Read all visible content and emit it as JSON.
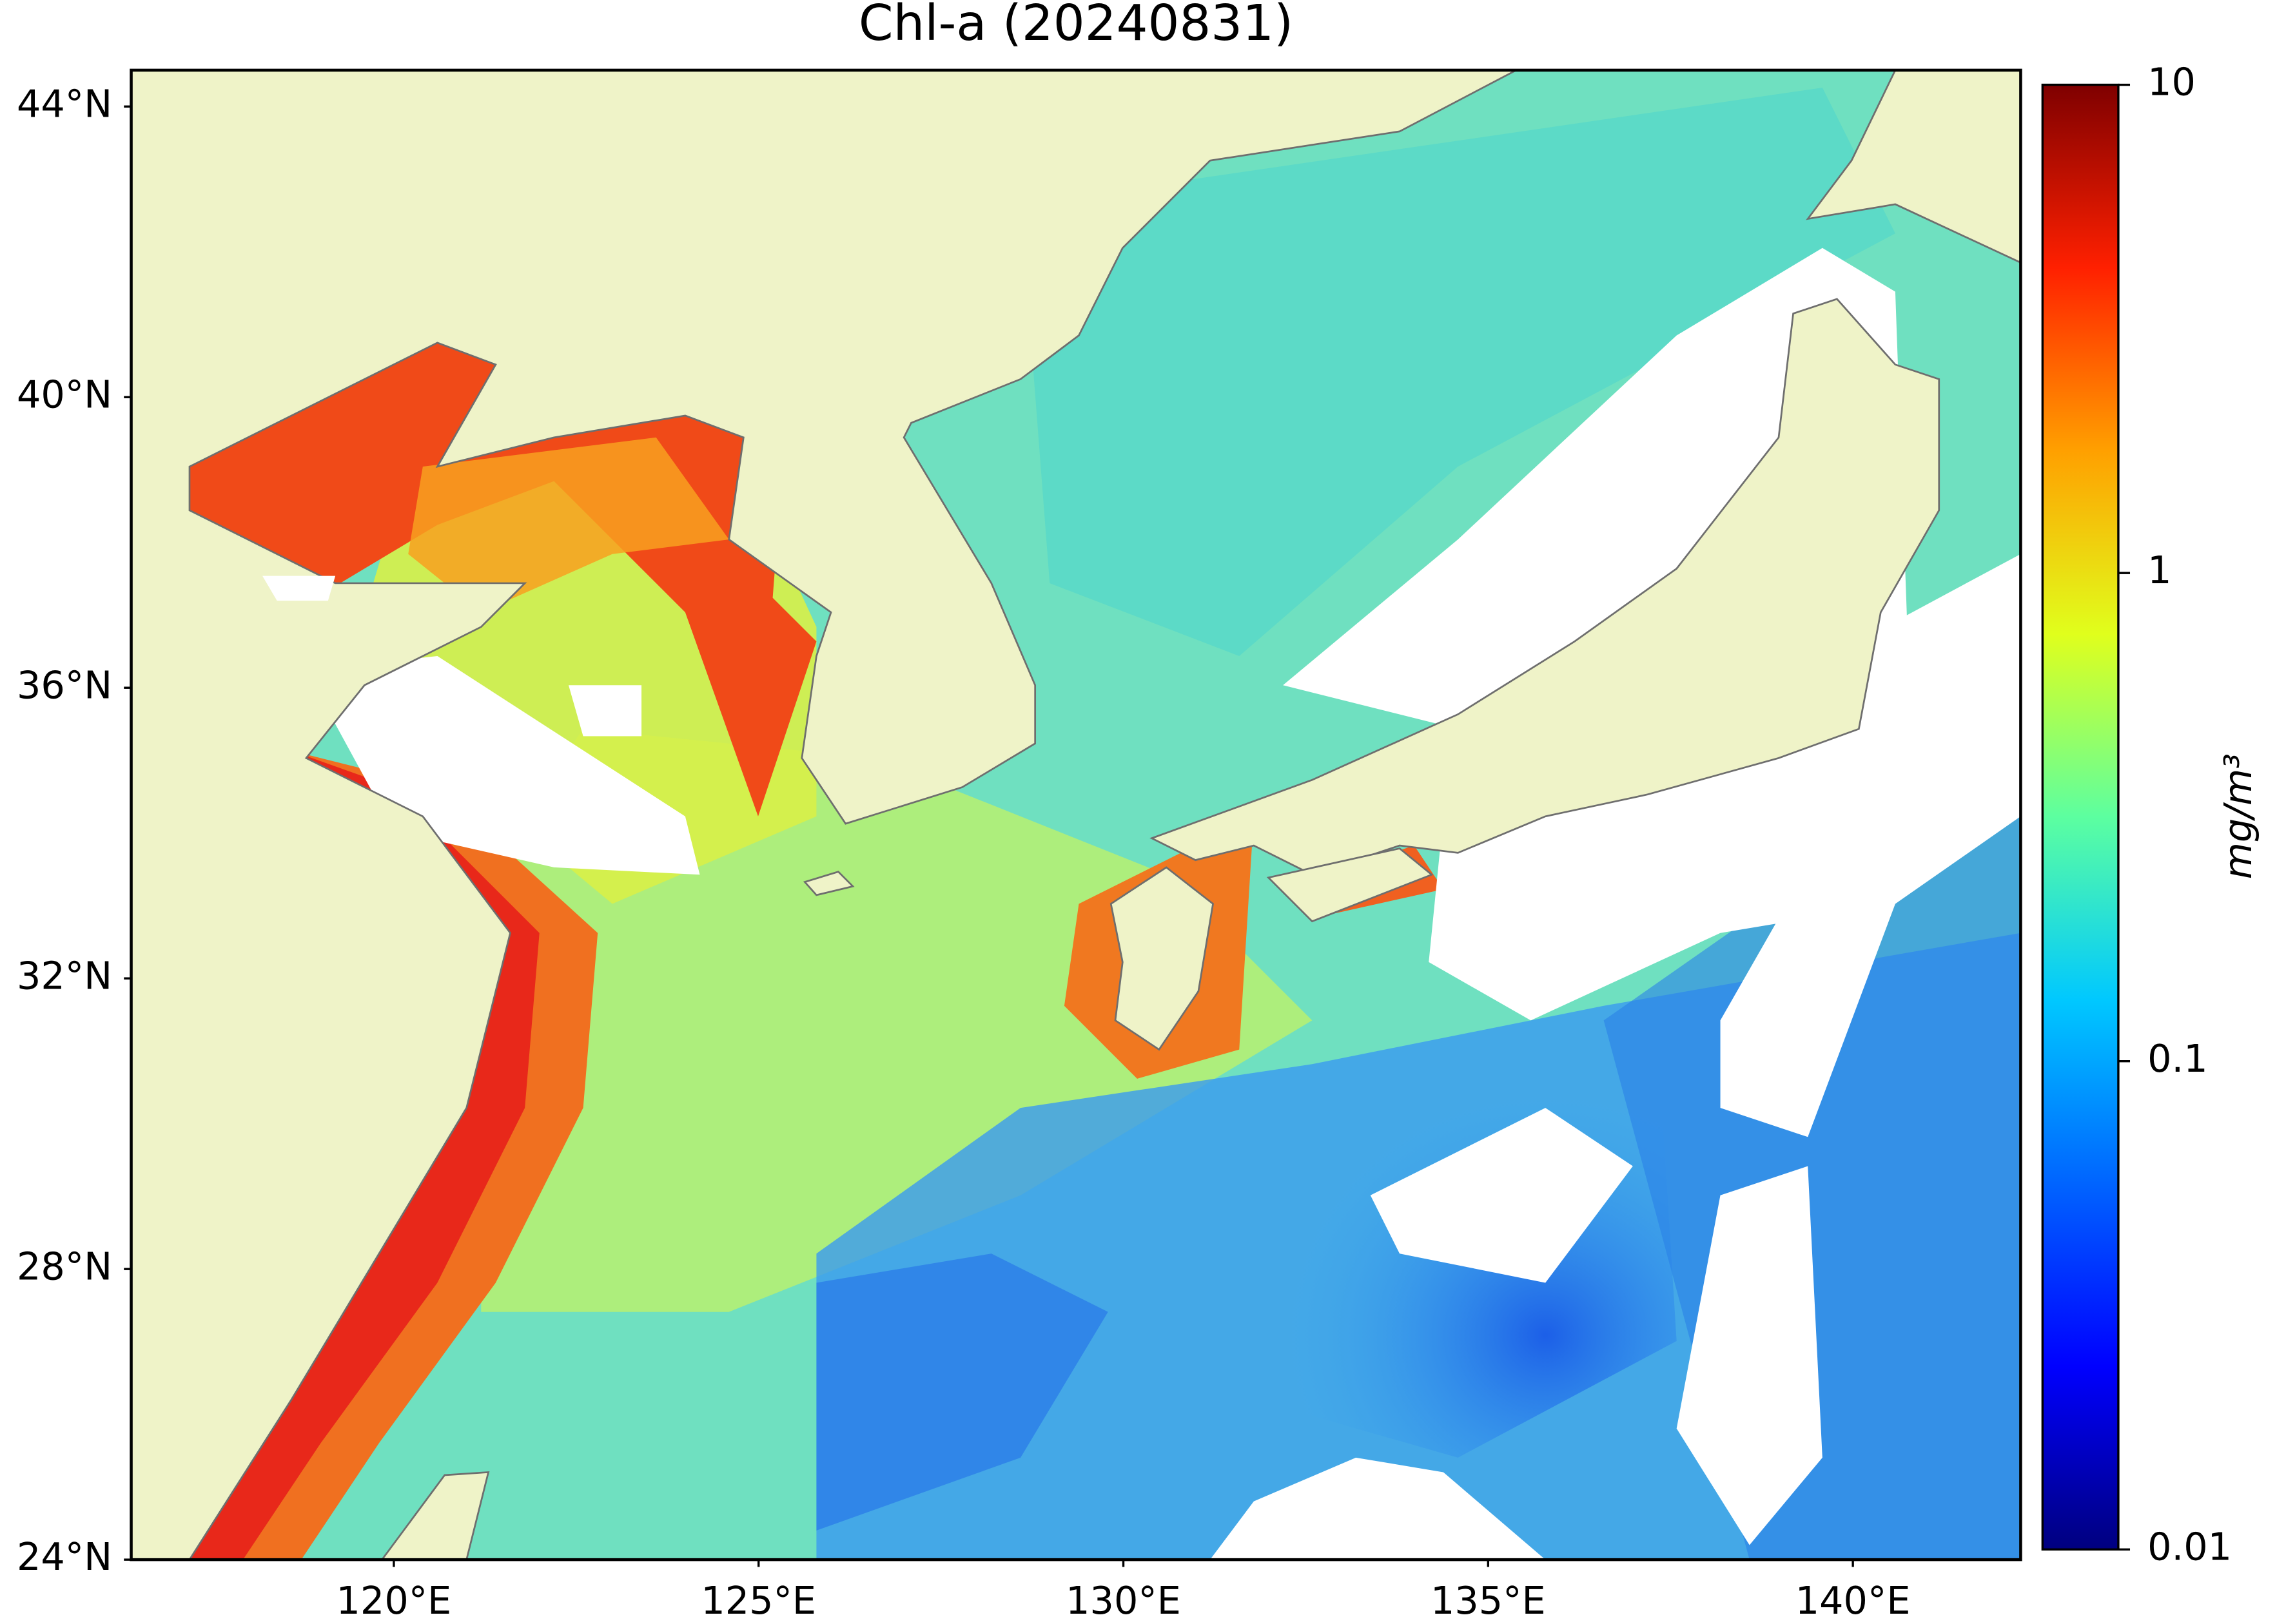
{
  "chart_data": {
    "type": "map",
    "title": "Chl-a (20240831)",
    "xlim": [
      116.4,
      142.3
    ],
    "ylim": [
      24,
      44.5
    ],
    "xticks": [
      {
        "value": 120,
        "label": "120°E"
      },
      {
        "value": 125,
        "label": "125°E"
      },
      {
        "value": 130,
        "label": "130°E"
      },
      {
        "value": 135,
        "label": "135°E"
      },
      {
        "value": 140,
        "label": "140°E"
      }
    ],
    "yticks": [
      {
        "value": 24,
        "label": "24°N"
      },
      {
        "value": 28,
        "label": "28°N"
      },
      {
        "value": 32,
        "label": "32°N"
      },
      {
        "value": 36,
        "label": "36°N"
      },
      {
        "value": 40,
        "label": "40°N"
      },
      {
        "value": 44,
        "label": "44°N"
      }
    ],
    "colorbar": {
      "label": "mg/m³",
      "log": true,
      "lim": [
        0.01,
        10
      ],
      "ticks": [
        0.01,
        0.1,
        1,
        10
      ],
      "colormap": "jet"
    }
  }
}
